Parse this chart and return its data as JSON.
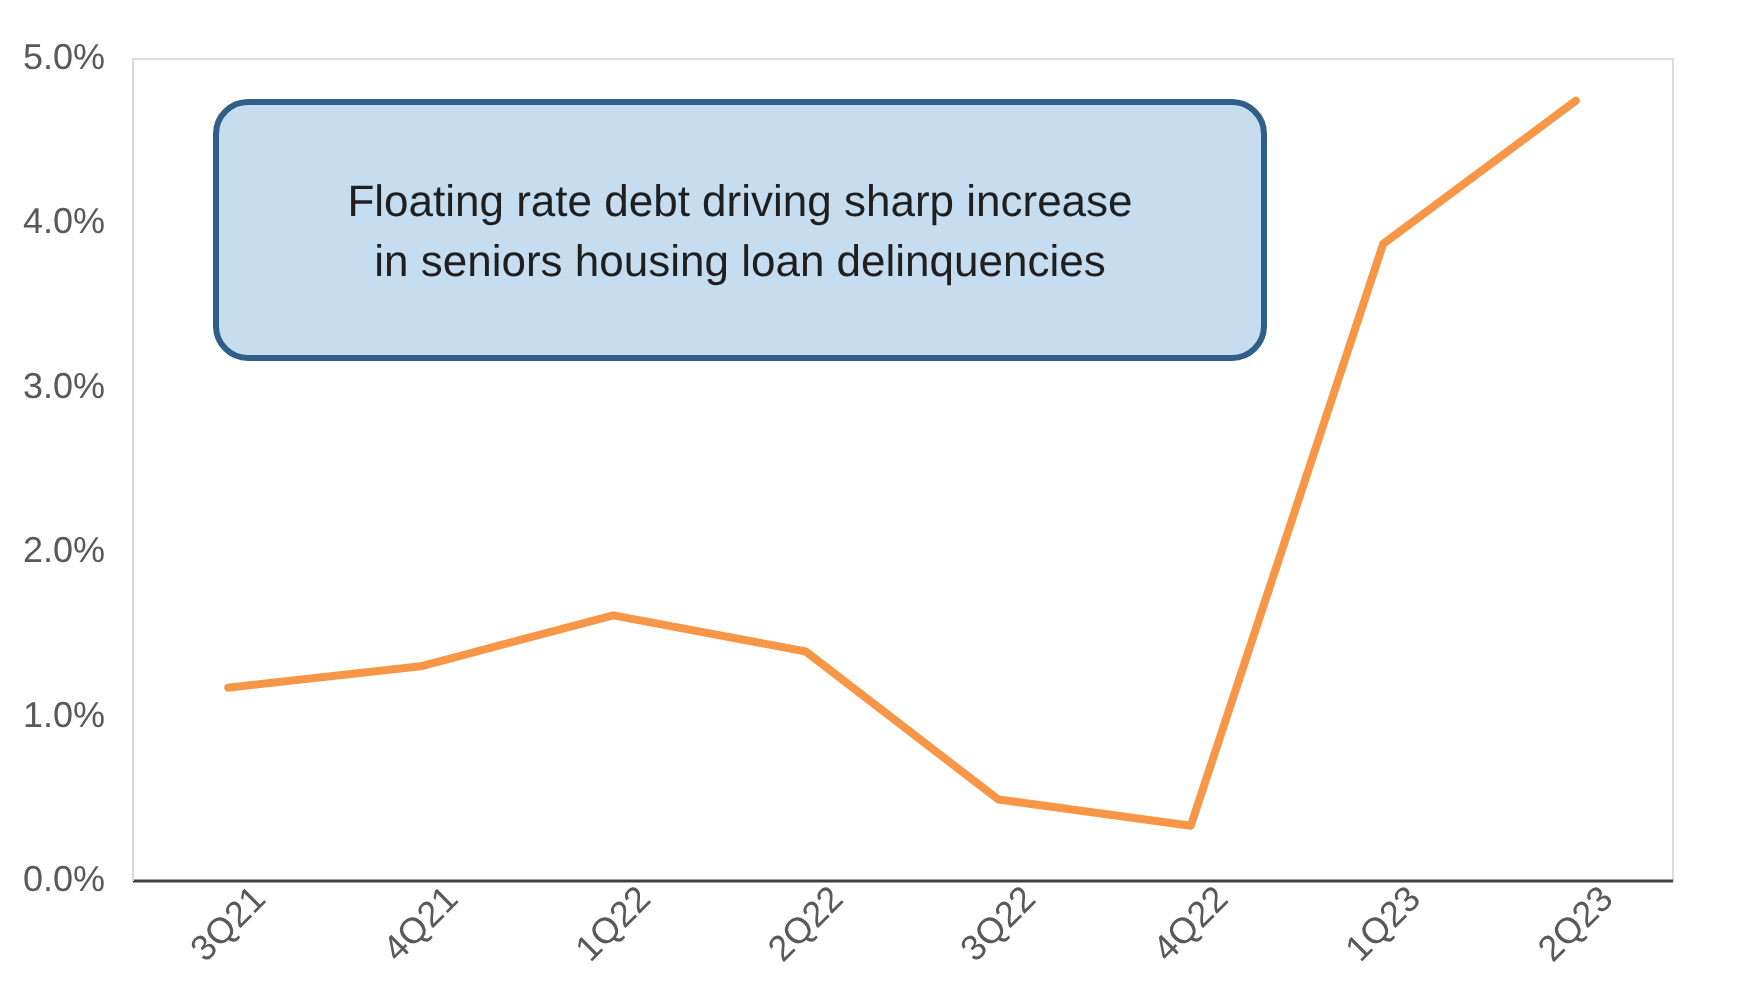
{
  "chart_data": {
    "type": "line",
    "categories": [
      "3Q21",
      "4Q21",
      "1Q22",
      "2Q22",
      "3Q22",
      "4Q22",
      "1Q23",
      "2Q23"
    ],
    "series": [
      {
        "color": "#f79646",
        "values": [
          1.17,
          1.3,
          1.61,
          1.39,
          0.49,
          0.33,
          3.87,
          4.74
        ]
      }
    ],
    "ylim": [
      0,
      5
    ],
    "yticks": [
      {
        "value": 0,
        "label": "0.0%"
      },
      {
        "value": 1,
        "label": "1.0%"
      },
      {
        "value": 2,
        "label": "2.0%"
      },
      {
        "value": 3,
        "label": "3.0%"
      },
      {
        "value": 4,
        "label": "4.0%"
      },
      {
        "value": 5,
        "label": "5.0%"
      }
    ],
    "grid": false,
    "marker": "none",
    "line_style": "solid",
    "annotations": [
      "Floating rate debt driving sharp increase in seniors housing loan delinquencies"
    ]
  }
}
